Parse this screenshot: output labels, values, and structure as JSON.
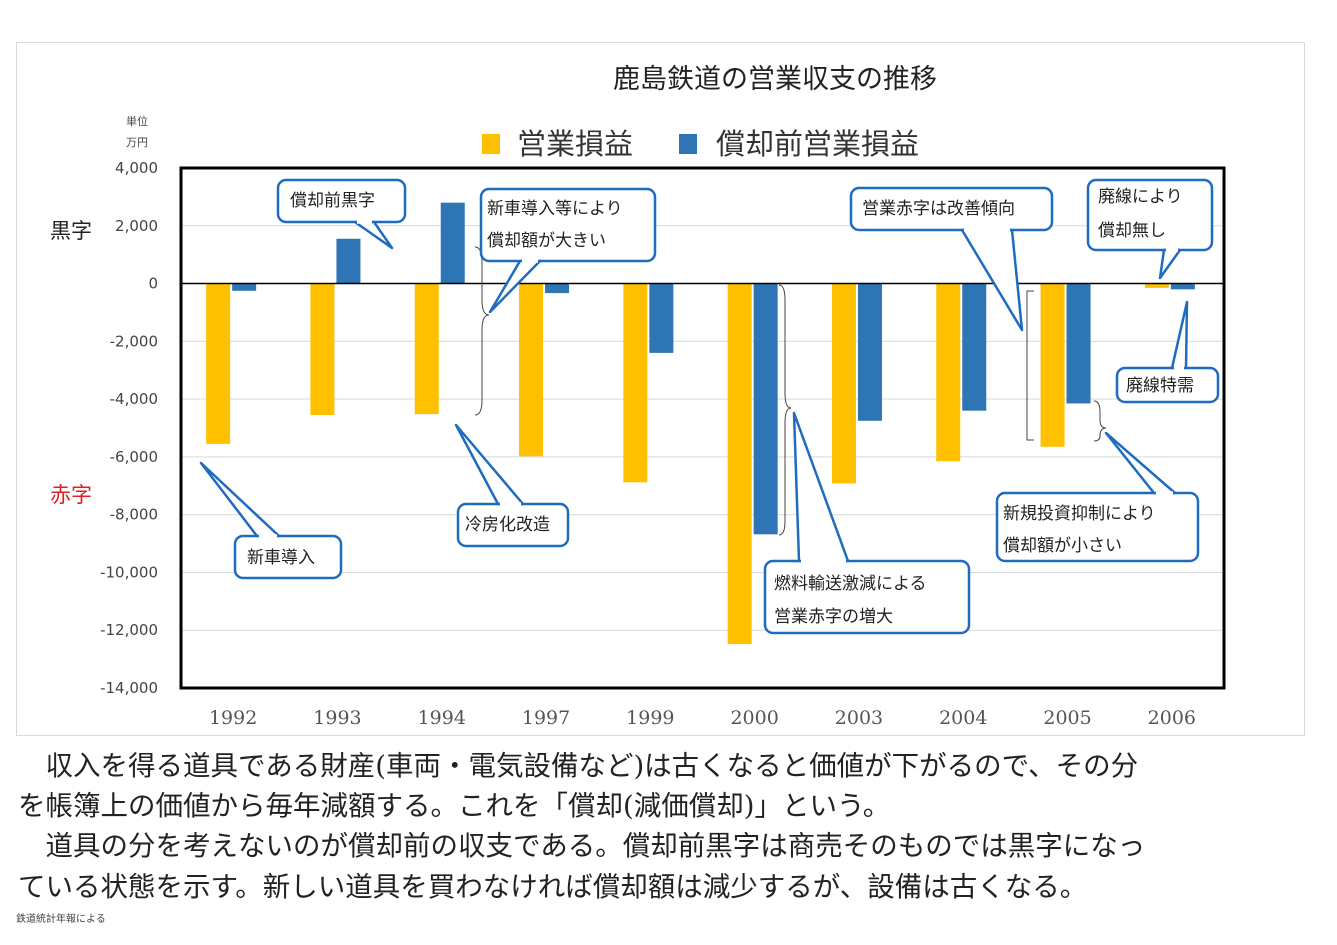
{
  "chart_data": {
    "type": "bar",
    "title": "鹿島鉄道の営業収支の推移",
    "unit_line1": "単位",
    "unit_line2": "万円",
    "side_label_profit": "黒字",
    "side_label_loss": "赤字",
    "categories": [
      "1992",
      "1993",
      "1994",
      "1997",
      "1999",
      "2000",
      "2003",
      "2004",
      "2005",
      "2006"
    ],
    "series": [
      {
        "name": "営業損益",
        "color": "#ffc000",
        "values": [
          -5550,
          -4550,
          -4520,
          -5980,
          -6880,
          -12480,
          -6920,
          -6150,
          -5650,
          -150
        ]
      },
      {
        "name": "償却前営業損益",
        "color": "#2e75b6",
        "values": [
          -250,
          1550,
          2800,
          -330,
          -2400,
          -8680,
          -4750,
          -4400,
          -4150,
          -200
        ]
      }
    ],
    "ylim": [
      -14000,
      4000
    ],
    "yticks": [
      {
        "value": 4000,
        "label": "4,000"
      },
      {
        "value": 2000,
        "label": "2,000"
      },
      {
        "value": 0,
        "label": "0"
      },
      {
        "value": -2000,
        "label": "-2,000"
      },
      {
        "value": -4000,
        "label": "-4,000"
      },
      {
        "value": -6000,
        "label": "-6,000"
      },
      {
        "value": -8000,
        "label": "-8,000"
      },
      {
        "value": -10000,
        "label": "-10,000"
      },
      {
        "value": -12000,
        "label": "-12,000"
      },
      {
        "value": -14000,
        "label": "-14,000"
      }
    ],
    "grid": true,
    "legend_position": "top",
    "annotations": [
      {
        "lines": [
          "償却前黒字"
        ]
      },
      {
        "lines": [
          "新車導入等により",
          "償却額が大きい"
        ]
      },
      {
        "lines": [
          "営業赤字は改善傾向"
        ]
      },
      {
        "lines": [
          "廃線により",
          "償却無し"
        ]
      },
      {
        "lines": [
          "廃線特需"
        ]
      },
      {
        "lines": [
          "冷房化改造"
        ]
      },
      {
        "lines": [
          "新車導入"
        ]
      },
      {
        "lines": [
          "燃料輸送激減による",
          "営業赤字の増大"
        ]
      },
      {
        "lines": [
          "新規投資抑制により",
          "償却額が小さい"
        ]
      }
    ]
  },
  "body": {
    "line1": "　収入を得る道具である財産(車両・電気設備など)は古くなると価値が下がるので、その分",
    "line2": "を帳簿上の価値から毎年減額する。これを「償却(減価償却)」という。",
    "line3": "　道具の分を考えないのが償却前の収支である。償却前黒字は商売そのものでは黒字になっ",
    "line4": "ている状態を示す。新しい道具を買わなければ償却額は減少するが、設備は古くなる。"
  },
  "source": "鉄道統計年報による"
}
